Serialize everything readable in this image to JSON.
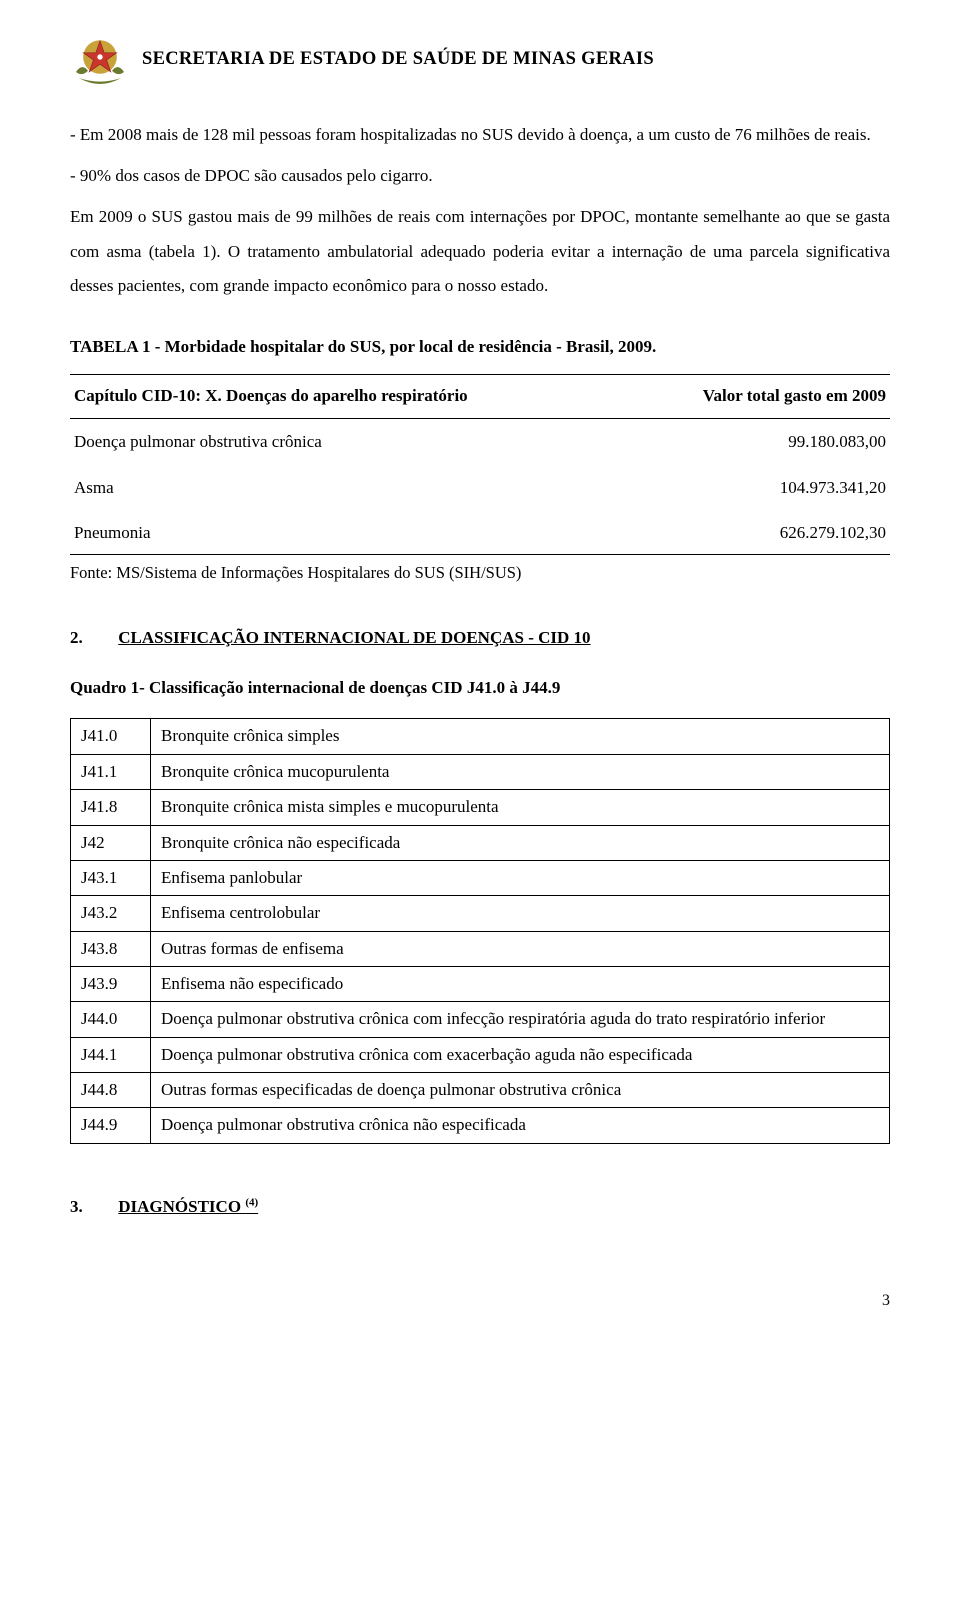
{
  "header": {
    "org_title": "SECRETARIA DE ESTADO DE SAÚDE DE MINAS GERAIS"
  },
  "paragraphs": {
    "p1": "- Em 2008 mais de 128 mil pessoas foram hospitalizadas no SUS devido à doença, a um custo de 76 milhões de reais.",
    "p2": "- 90% dos casos de DPOC são causados pelo cigarro.",
    "p3": "Em 2009 o SUS gastou mais de 99 milhões de reais com internações por DPOC, montante semelhante ao que se gasta com asma (tabela 1). O tratamento ambulatorial adequado poderia evitar a internação de uma parcela significativa desses pacientes, com grande impacto econômico para o nosso estado."
  },
  "table1": {
    "title": "TABELA 1 - Morbidade hospitalar do SUS, por local de residência - Brasil, 2009.",
    "col1_header": "Capítulo CID-10: X. Doenças do aparelho respiratório",
    "col2_header": "Valor total gasto em 2009",
    "rows": [
      {
        "name": "Doença pulmonar obstrutiva crônica",
        "value": "99.180.083,00"
      },
      {
        "name": "Asma",
        "value": "104.973.341,20"
      },
      {
        "name": "Pneumonia",
        "value": "626.279.102,30"
      }
    ],
    "source": "Fonte: MS/Sistema de Informações Hospitalares do SUS (SIH/SUS)"
  },
  "section2": {
    "num": "2.",
    "title": "CLASSIFICAÇÃO INTERNACIONAL DE DOENÇAS - CID 10",
    "quadro_title": "Quadro 1- Classificação internacional de doenças CID J41.0 à J44.9"
  },
  "table2": {
    "rows": [
      {
        "code": "J41.0",
        "desc": "Bronquite crônica simples"
      },
      {
        "code": "J41.1",
        "desc": "Bronquite crônica mucopurulenta"
      },
      {
        "code": "J41.8",
        "desc": "Bronquite crônica mista simples e mucopurulenta"
      },
      {
        "code": "J42",
        "desc": "Bronquite crônica não especificada"
      },
      {
        "code": "J43.1",
        "desc": "Enfisema panlobular"
      },
      {
        "code": "J43.2",
        "desc": "Enfisema centrolobular"
      },
      {
        "code": "J43.8",
        "desc": "Outras formas de enfisema"
      },
      {
        "code": "J43.9",
        "desc": "Enfisema não especificado"
      },
      {
        "code": "J44.0",
        "desc": "Doença pulmonar obstrutiva crônica com infecção respiratória aguda do trato respiratório inferior"
      },
      {
        "code": "J44.1",
        "desc": "Doença pulmonar obstrutiva crônica com exacerbação aguda não especificada"
      },
      {
        "code": "J44.8",
        "desc": "Outras formas especificadas de doença pulmonar obstrutiva crônica"
      },
      {
        "code": "J44.9",
        "desc": "Doença pulmonar obstrutiva crônica não especificada"
      }
    ]
  },
  "section3": {
    "num": "3.",
    "title": "DIAGNÓSTICO",
    "ref": "(4)"
  },
  "page_number": "3",
  "colors": {
    "text": "#000000",
    "background": "#ffffff",
    "emblem_gold": "#c9a23a",
    "emblem_red": "#c9372c",
    "emblem_olive": "#6a7a2f"
  }
}
